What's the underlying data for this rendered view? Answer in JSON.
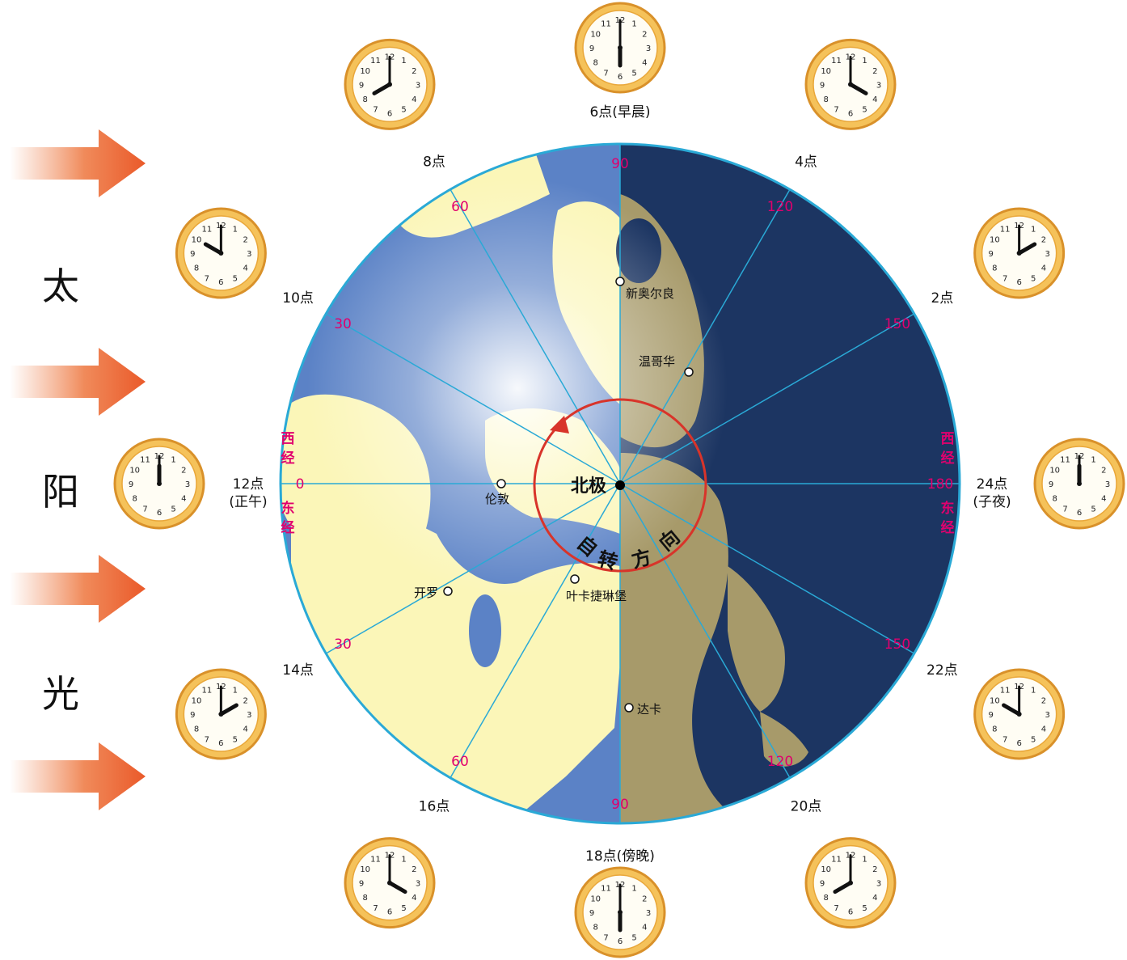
{
  "sunlight_label": [
    "太",
    "阳",
    "光"
  ],
  "pole_label": "北极",
  "rotation_label": [
    "自",
    "转",
    "方",
    "向"
  ],
  "meridian_labels": {
    "west_longitude": [
      "西",
      "经"
    ],
    "east_longitude": [
      "东",
      "经"
    ]
  },
  "longitude_ticks": [
    {
      "angle": -90,
      "text": "90"
    },
    {
      "angle": -60,
      "text": "60"
    },
    {
      "angle": -30,
      "text": "30"
    },
    {
      "angle": 0,
      "text": "0"
    },
    {
      "angle": 30,
      "text": "30"
    },
    {
      "angle": 60,
      "text": "60"
    },
    {
      "angle": 90,
      "text": "90"
    },
    {
      "angle": 120,
      "text": "120"
    },
    {
      "angle": 150,
      "text": "150"
    },
    {
      "angle": 180,
      "text": "180"
    },
    {
      "angle": 210,
      "text": "150"
    },
    {
      "angle": 240,
      "text": "120"
    }
  ],
  "time_labels": [
    {
      "angle": 0,
      "text": "12点",
      "sub": "(正午)",
      "hour": 12
    },
    {
      "angle": 30,
      "text": "14点",
      "hour": 14
    },
    {
      "angle": 60,
      "text": "16点",
      "hour": 16
    },
    {
      "angle": 90,
      "text": "18点(傍晚)",
      "hour": 18
    },
    {
      "angle": 120,
      "text": "20点",
      "hour": 20
    },
    {
      "angle": 150,
      "text": "22点",
      "hour": 22
    },
    {
      "angle": 180,
      "text": "24点",
      "sub": "(子夜)",
      "hour": 24
    },
    {
      "angle": 210,
      "text": "2点",
      "hour": 2
    },
    {
      "angle": 240,
      "text": "4点",
      "hour": 4
    },
    {
      "angle": 270,
      "text": "6点(早晨)",
      "hour": 6
    },
    {
      "angle": 300,
      "text": "8点",
      "hour": 8
    },
    {
      "angle": 330,
      "text": "10点",
      "hour": 10
    }
  ],
  "clock_numerals": [
    "12",
    "1",
    "2",
    "3",
    "4",
    "5",
    "6",
    "7",
    "8",
    "9",
    "10",
    "11"
  ],
  "cities": [
    {
      "name": "伦敦"
    },
    {
      "name": "开罗"
    },
    {
      "name": "叶卡捷琳堡"
    },
    {
      "name": "达卡"
    },
    {
      "name": "温哥华"
    },
    {
      "name": "新奥尔良"
    }
  ],
  "colors": {
    "ocean_day": "#5b82c6",
    "ocean_night": "#1c3562",
    "land_day": "#fbf6b8",
    "land_night": "#a79a6a",
    "meridian": "#2aa9d6",
    "tick_text": "#e0006e",
    "rotation_circle": "#d8342a",
    "clock_rim": "#f2b134",
    "sun_arrow": "#ef6a3c"
  }
}
